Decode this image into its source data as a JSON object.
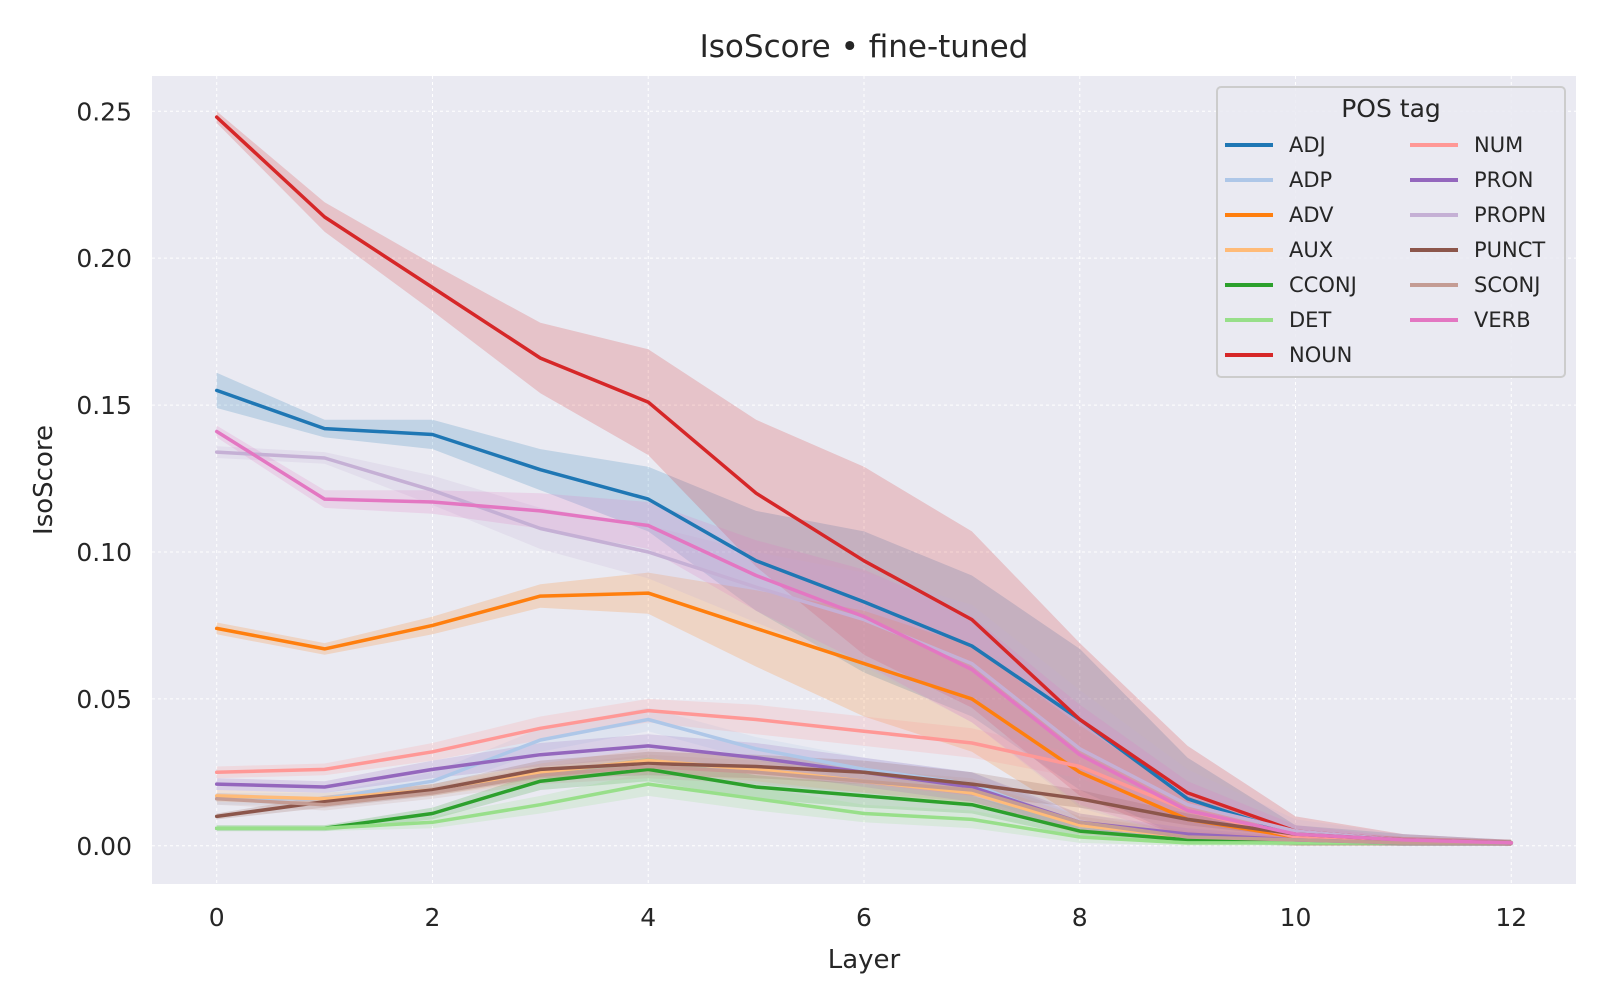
{
  "chart_data": {
    "type": "line",
    "title": "IsoScore • fine-tuned",
    "xlabel": "Layer",
    "ylabel": "IsoScore",
    "x": [
      0,
      1,
      2,
      3,
      4,
      5,
      6,
      7,
      8,
      9,
      10,
      11,
      12
    ],
    "xlim": [
      -0.6,
      12.6
    ],
    "ylim": [
      -0.013,
      0.262
    ],
    "xticks": [
      0,
      2,
      4,
      6,
      8,
      10,
      12
    ],
    "xtick_labels": [
      "0",
      "2",
      "4",
      "6",
      "8",
      "10",
      "12"
    ],
    "yticks": [
      0,
      0.05,
      0.1,
      0.15,
      0.2,
      0.25
    ],
    "ytick_labels": [
      "0.00",
      "0.05",
      "0.10",
      "0.15",
      "0.20",
      "0.25"
    ],
    "grid": true,
    "legend": {
      "title": "POS tag",
      "position": "top-right",
      "columns": 2
    },
    "series": [
      {
        "name": "ADJ",
        "color": "#1f77b4",
        "values": [
          0.155,
          0.142,
          0.14,
          0.128,
          0.118,
          0.097,
          0.083,
          0.068,
          0.043,
          0.016,
          0.004,
          0.002,
          0.001
        ],
        "band": [
          0.006,
          0.003,
          0.005,
          0.007,
          0.011,
          0.017,
          0.024,
          0.024,
          0.024,
          0.014,
          0.003,
          0.002,
          0.001
        ]
      },
      {
        "name": "ADP",
        "color": "#aec7e8",
        "values": [
          0.016,
          0.016,
          0.022,
          0.036,
          0.043,
          0.033,
          0.026,
          0.021,
          0.007,
          0.003,
          0.002,
          0.001,
          0.001
        ],
        "band": [
          0.002,
          0.002,
          0.003,
          0.004,
          0.004,
          0.004,
          0.004,
          0.004,
          0.003,
          0.002,
          0.001,
          0.001,
          0.001
        ]
      },
      {
        "name": "ADV",
        "color": "#ff7f0e",
        "values": [
          0.074,
          0.067,
          0.075,
          0.085,
          0.086,
          0.074,
          0.062,
          0.05,
          0.025,
          0.009,
          0.003,
          0.002,
          0.001
        ],
        "band": [
          0.002,
          0.002,
          0.003,
          0.004,
          0.007,
          0.013,
          0.018,
          0.018,
          0.016,
          0.008,
          0.002,
          0.001,
          0.001
        ]
      },
      {
        "name": "AUX",
        "color": "#ffbb78",
        "values": [
          0.017,
          0.016,
          0.019,
          0.025,
          0.029,
          0.026,
          0.022,
          0.018,
          0.007,
          0.003,
          0.002,
          0.001,
          0.001
        ],
        "band": [
          0.002,
          0.002,
          0.002,
          0.003,
          0.004,
          0.004,
          0.004,
          0.004,
          0.003,
          0.002,
          0.001,
          0.001,
          0.001
        ]
      },
      {
        "name": "CCONJ",
        "color": "#2ca02c",
        "values": [
          0.006,
          0.006,
          0.011,
          0.022,
          0.026,
          0.02,
          0.017,
          0.014,
          0.005,
          0.002,
          0.001,
          0.001,
          0.001
        ],
        "band": [
          0.001,
          0.001,
          0.002,
          0.003,
          0.004,
          0.004,
          0.004,
          0.003,
          0.002,
          0.001,
          0.001,
          0.001,
          0.001
        ]
      },
      {
        "name": "DET",
        "color": "#98df8a",
        "values": [
          0.006,
          0.006,
          0.008,
          0.014,
          0.021,
          0.016,
          0.011,
          0.009,
          0.003,
          0.001,
          0.001,
          0.001,
          0.001
        ],
        "band": [
          0.001,
          0.001,
          0.002,
          0.003,
          0.004,
          0.004,
          0.003,
          0.003,
          0.002,
          0.001,
          0.001,
          0.001,
          0.001
        ]
      },
      {
        "name": "NOUN",
        "color": "#d62728",
        "values": [
          0.248,
          0.214,
          0.19,
          0.166,
          0.151,
          0.12,
          0.097,
          0.077,
          0.043,
          0.018,
          0.005,
          0.002,
          0.001
        ],
        "band": [
          0.002,
          0.005,
          0.008,
          0.012,
          0.018,
          0.025,
          0.032,
          0.03,
          0.026,
          0.016,
          0.005,
          0.002,
          0.001
        ]
      },
      {
        "name": "NUM",
        "color": "#ff9896",
        "values": [
          0.025,
          0.026,
          0.032,
          0.04,
          0.046,
          0.043,
          0.039,
          0.035,
          0.027,
          0.012,
          0.003,
          0.002,
          0.001
        ],
        "band": [
          0.002,
          0.002,
          0.003,
          0.004,
          0.004,
          0.005,
          0.005,
          0.005,
          0.004,
          0.003,
          0.002,
          0.001,
          0.001
        ]
      },
      {
        "name": "PRON",
        "color": "#9467bd",
        "values": [
          0.021,
          0.02,
          0.026,
          0.031,
          0.034,
          0.03,
          0.025,
          0.02,
          0.008,
          0.004,
          0.002,
          0.001,
          0.001
        ],
        "band": [
          0.002,
          0.002,
          0.003,
          0.004,
          0.004,
          0.005,
          0.005,
          0.005,
          0.003,
          0.002,
          0.001,
          0.001,
          0.001
        ]
      },
      {
        "name": "PROPN",
        "color": "#c5b0d5",
        "values": [
          0.134,
          0.132,
          0.121,
          0.108,
          0.1,
          0.088,
          0.077,
          0.062,
          0.033,
          0.014,
          0.005,
          0.002,
          0.001
        ],
        "band": [
          0.002,
          0.002,
          0.005,
          0.007,
          0.009,
          0.012,
          0.016,
          0.02,
          0.02,
          0.012,
          0.004,
          0.002,
          0.001
        ]
      },
      {
        "name": "PUNCT",
        "color": "#8c564b",
        "values": [
          0.01,
          0.015,
          0.019,
          0.026,
          0.028,
          0.027,
          0.025,
          0.021,
          0.016,
          0.009,
          0.004,
          0.002,
          0.001
        ],
        "band": [
          0.001,
          0.002,
          0.002,
          0.003,
          0.004,
          0.004,
          0.004,
          0.004,
          0.003,
          0.002,
          0.001,
          0.001,
          0.001
        ]
      },
      {
        "name": "SCONJ",
        "color": "#c49c94",
        "values": [
          0.016,
          0.014,
          0.018,
          0.024,
          0.027,
          0.025,
          0.022,
          0.019,
          0.008,
          0.003,
          0.002,
          0.001,
          0.001
        ],
        "band": [
          0.002,
          0.002,
          0.002,
          0.003,
          0.004,
          0.004,
          0.004,
          0.004,
          0.003,
          0.002,
          0.001,
          0.001,
          0.001
        ]
      },
      {
        "name": "VERB",
        "color": "#e377c2",
        "values": [
          0.141,
          0.118,
          0.117,
          0.114,
          0.109,
          0.092,
          0.078,
          0.06,
          0.031,
          0.012,
          0.004,
          0.002,
          0.001
        ],
        "band": [
          0.002,
          0.003,
          0.004,
          0.006,
          0.008,
          0.012,
          0.016,
          0.018,
          0.017,
          0.01,
          0.003,
          0.001,
          0.001
        ]
      }
    ],
    "colors": {
      "plot_background": "#eaeaf2",
      "grid": "#ffffff",
      "text": "#262626"
    }
  }
}
